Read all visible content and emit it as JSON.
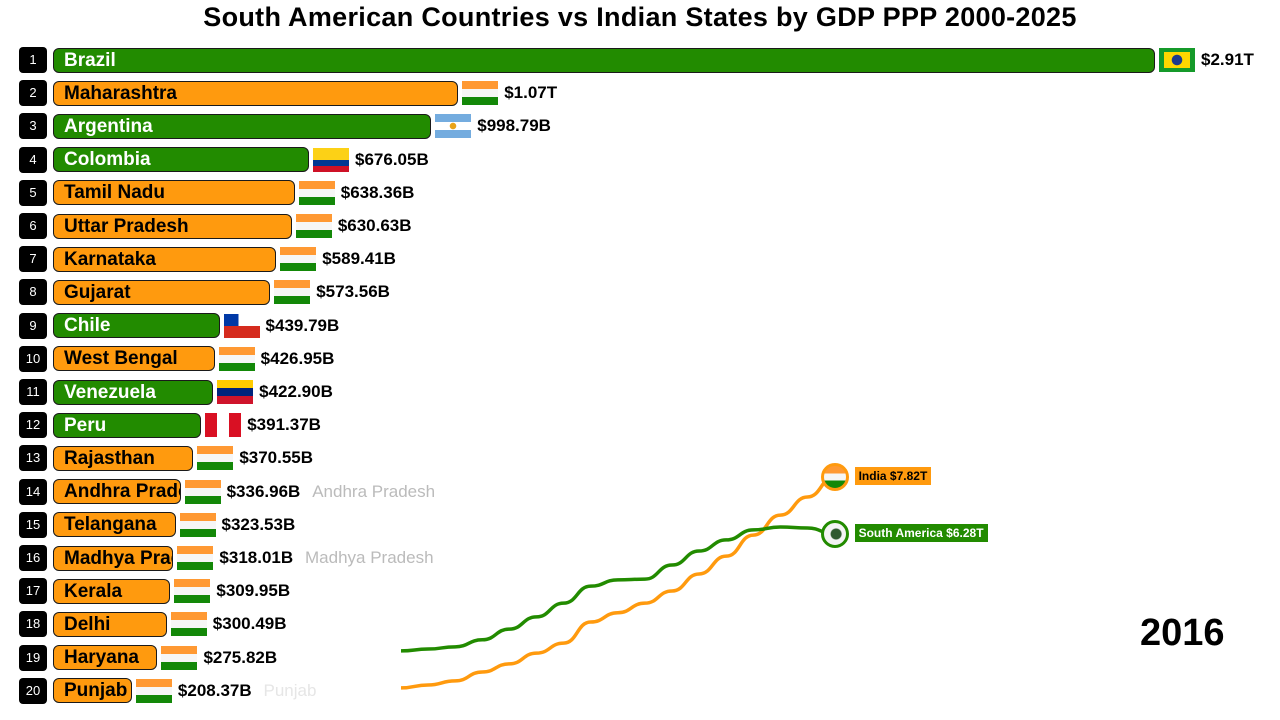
{
  "title": "South American Countries vs Indian States by GDP PPP  2000-2025",
  "colors": {
    "south_america": "#228b00",
    "india": "#ff9a0e"
  },
  "chart_data": [
    {
      "type": "bar",
      "orientation": "horizontal",
      "year": "2016",
      "unit": "billion USD (GDP PPP)",
      "bars": [
        {
          "rank": "1",
          "name": "Brazil",
          "value": 2910,
          "label": "$2.91T",
          "group": "south_america",
          "flag": "brazil"
        },
        {
          "rank": "2",
          "name": "Maharashtra",
          "value": 1070,
          "label": "$1.07T",
          "group": "india",
          "flag": "india"
        },
        {
          "rank": "3",
          "name": "Argentina",
          "value": 998.79,
          "label": "$998.79B",
          "group": "south_america",
          "flag": "argentina"
        },
        {
          "rank": "4",
          "name": "Colombia",
          "value": 676.05,
          "label": "$676.05B",
          "group": "south_america",
          "flag": "colombia"
        },
        {
          "rank": "5",
          "name": "Tamil Nadu",
          "value": 638.36,
          "label": "$638.36B",
          "group": "india",
          "flag": "india"
        },
        {
          "rank": "6",
          "name": "Uttar Pradesh",
          "value": 630.63,
          "label": "$630.63B",
          "group": "india",
          "flag": "india"
        },
        {
          "rank": "7",
          "name": "Karnataka",
          "value": 589.41,
          "label": "$589.41B",
          "group": "india",
          "flag": "india"
        },
        {
          "rank": "8",
          "name": "Gujarat",
          "value": 573.56,
          "label": "$573.56B",
          "group": "india",
          "flag": "india"
        },
        {
          "rank": "9",
          "name": "Chile",
          "value": 439.79,
          "label": "$439.79B",
          "group": "south_america",
          "flag": "chile"
        },
        {
          "rank": "10",
          "name": "West Bengal",
          "value": 426.95,
          "label": "$426.95B",
          "group": "india",
          "flag": "india"
        },
        {
          "rank": "11",
          "name": "Venezuela",
          "value": 422.9,
          "label": "$422.90B",
          "group": "south_america",
          "flag": "venezuela"
        },
        {
          "rank": "12",
          "name": "Peru",
          "value": 391.37,
          "label": "$391.37B",
          "group": "south_america",
          "flag": "peru"
        },
        {
          "rank": "13",
          "name": "Rajasthan",
          "value": 370.55,
          "label": "$370.55B",
          "group": "india",
          "flag": "india"
        },
        {
          "rank": "14",
          "name": "Andhra Pradesh",
          "value": 336.96,
          "label": "$336.96B",
          "group": "india",
          "flag": "india",
          "ghost": "Andhra Pradesh"
        },
        {
          "rank": "15",
          "name": "Telangana",
          "value": 323.53,
          "label": "$323.53B",
          "group": "india",
          "flag": "india"
        },
        {
          "rank": "16",
          "name": "Madhya Pradesh",
          "value": 318.01,
          "label": "$318.01B",
          "group": "india",
          "flag": "india",
          "ghost": "Madhya Pradesh"
        },
        {
          "rank": "17",
          "name": "Kerala",
          "value": 309.95,
          "label": "$309.95B",
          "group": "india",
          "flag": "india"
        },
        {
          "rank": "18",
          "name": "Delhi",
          "value": 300.49,
          "label": "$300.49B",
          "group": "india",
          "flag": "india"
        },
        {
          "rank": "19",
          "name": "Haryana",
          "value": 275.82,
          "label": "$275.82B",
          "group": "india",
          "flag": "india"
        },
        {
          "rank": "20",
          "name": "Punjab",
          "value": 208.37,
          "label": "$208.37B",
          "group": "india",
          "flag": "india",
          "ghost": "Punjab"
        }
      ]
    },
    {
      "type": "line",
      "unit": "trillion USD",
      "x": [
        2000,
        2001,
        2002,
        2003,
        2004,
        2005,
        2006,
        2007,
        2008,
        2009,
        2010,
        2011,
        2012,
        2013,
        2014,
        2015,
        2016
      ],
      "series": [
        {
          "name": "India",
          "label": "India $7.82T",
          "icon": "india-flag",
          "color": "#ff9a0e",
          "values": [
            2.12,
            2.2,
            2.31,
            2.55,
            2.77,
            3.06,
            3.33,
            3.9,
            4.15,
            4.41,
            4.74,
            5.2,
            5.68,
            6.25,
            6.79,
            7.28,
            7.82
          ]
        },
        {
          "name": "South America",
          "label": "South America $6.28T",
          "icon": "south-america-globe",
          "color": "#228b00",
          "values": [
            3.12,
            3.17,
            3.23,
            3.42,
            3.71,
            4.04,
            4.41,
            4.87,
            5.04,
            5.06,
            5.44,
            5.82,
            6.12,
            6.39,
            6.47,
            6.44,
            6.28
          ]
        }
      ]
    }
  ],
  "year_label": "2016"
}
